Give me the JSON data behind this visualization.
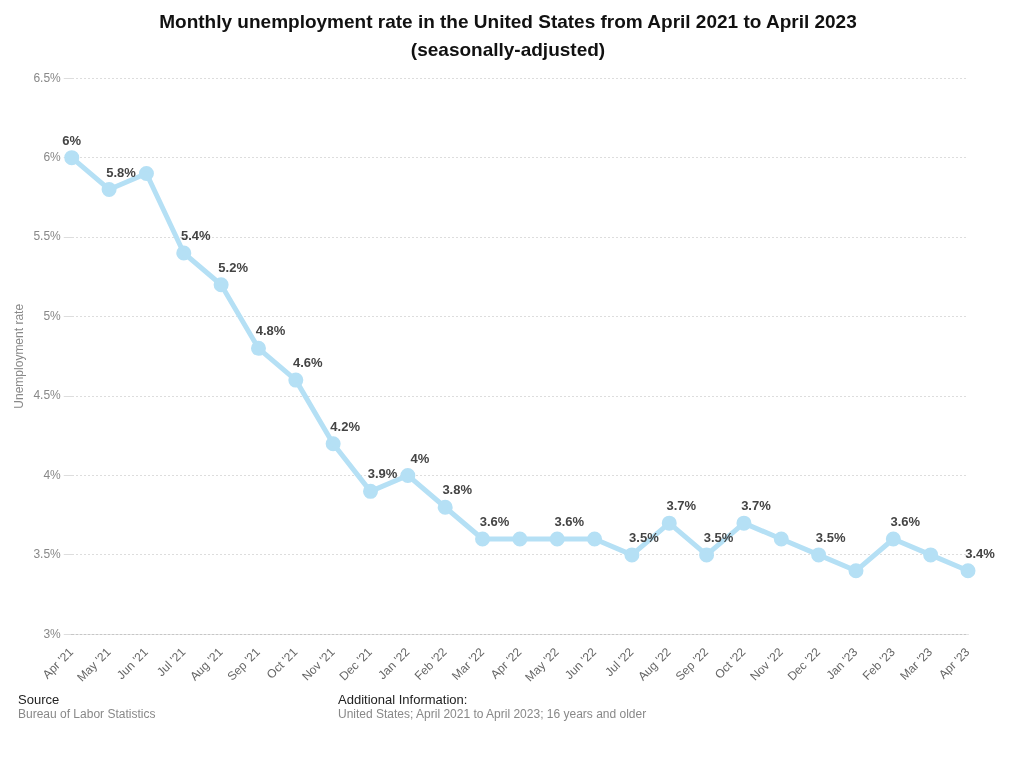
{
  "chart_data": {
    "type": "line",
    "title": "Monthly unemployment rate in the United States from April 2021 to April 2023 (seasonally-adjusted)",
    "ylabel": "Unemployment rate",
    "categories": [
      "Apr '21",
      "May '21",
      "Jun '21",
      "Jul '21",
      "Aug '21",
      "Sep '21",
      "Oct '21",
      "Nov '21",
      "Dec '21",
      "Jan '22",
      "Feb '22",
      "Mar '22",
      "Apr '22",
      "May '22",
      "Jun '22",
      "Jul '22",
      "Aug '22",
      "Sep '22",
      "Oct '22",
      "Nov '22",
      "Dec '22",
      "Jan '23",
      "Feb '23",
      "Mar '23",
      "Apr '23"
    ],
    "values": [
      6.0,
      5.8,
      5.9,
      5.4,
      5.2,
      4.8,
      4.6,
      4.2,
      3.9,
      4.0,
      3.8,
      3.6,
      3.6,
      3.6,
      3.6,
      3.5,
      3.7,
      3.5,
      3.7,
      3.6,
      3.5,
      3.4,
      3.6,
      3.5,
      3.4
    ],
    "value_labels": [
      "6%",
      "5.8%",
      null,
      "5.4%",
      "5.2%",
      "4.8%",
      "4.6%",
      "4.2%",
      "3.9%",
      "4%",
      "3.8%",
      "3.6%",
      null,
      "3.6%",
      null,
      "3.5%",
      "3.7%",
      "3.5%",
      "3.7%",
      null,
      "3.5%",
      null,
      "3.6%",
      null,
      "3.4%"
    ],
    "color": "#b5e0f5",
    "ylim": [
      3,
      6.5
    ],
    "yticks": [
      {
        "value": 3,
        "label": "3%"
      },
      {
        "value": 3.5,
        "label": "3.5%"
      },
      {
        "value": 4,
        "label": "4%"
      },
      {
        "value": 4.5,
        "label": "4.5%"
      },
      {
        "value": 5,
        "label": "5%"
      },
      {
        "value": 5.5,
        "label": "5.5%"
      },
      {
        "value": 6,
        "label": "6%"
      },
      {
        "value": 6.5,
        "label": "6.5%"
      }
    ],
    "grid": "y",
    "legend": false,
    "marker": "circle",
    "line_style": "solid",
    "annotations": [
      "Source",
      "Bureau of Labor Statistics",
      "Additional Information:",
      "United States; April 2021 to April 2023; 16 years and older"
    ]
  }
}
